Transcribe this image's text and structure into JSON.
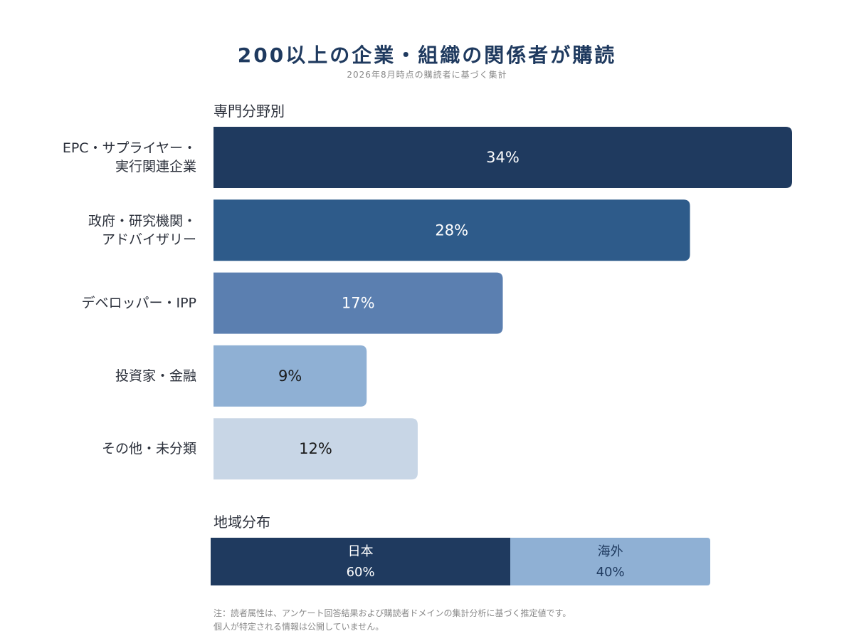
{
  "title": "200以上の企業・組織の関係者が購読",
  "subtitle": "2026年8月時点の購読者に基づく集計",
  "chart_data": [
    {
      "type": "bar",
      "orientation": "horizontal",
      "title": "専門分野別",
      "categories": [
        [
          "EPC・サプライヤー・",
          "実行関連企業"
        ],
        [
          "政府・研究機関・",
          "アドバイザリー"
        ],
        [
          "デベロッパー・IPP"
        ],
        [
          "投資家・金融"
        ],
        [
          "その他・未分類"
        ]
      ],
      "values": [
        34,
        28,
        17,
        9,
        12
      ],
      "value_labels": [
        "34%",
        "28%",
        "17%",
        "9%",
        "12%"
      ],
      "unit": "%",
      "xlim": [
        0,
        34
      ],
      "colors": [
        "#1f3a5f",
        "#2e5b8a",
        "#5b7fb0",
        "#8fb0d4",
        "#c8d6e6"
      ],
      "label_colors": [
        "#ffffff",
        "#ffffff",
        "#ffffff",
        "#1a1a1a",
        "#1a1a1a"
      ],
      "grid": false,
      "legend": "none"
    },
    {
      "type": "bar",
      "orientation": "stacked-horizontal",
      "title": "地域分布",
      "categories": [
        "日本",
        "海外"
      ],
      "values": [
        60,
        40
      ],
      "value_labels": [
        "60%",
        "40%"
      ],
      "unit": "%",
      "colors": [
        "#1f3a5f",
        "#8fb0d4"
      ],
      "label_colors": [
        "#ffffff",
        "#1f3a5f"
      ],
      "grid": false,
      "legend": "none"
    }
  ],
  "note": {
    "line1": "注：読者属性は、アンケート回答結果および購読者ドメインの集計分析に基づく推定値です。",
    "line2": "個人が特定される情報は公開していません。"
  }
}
